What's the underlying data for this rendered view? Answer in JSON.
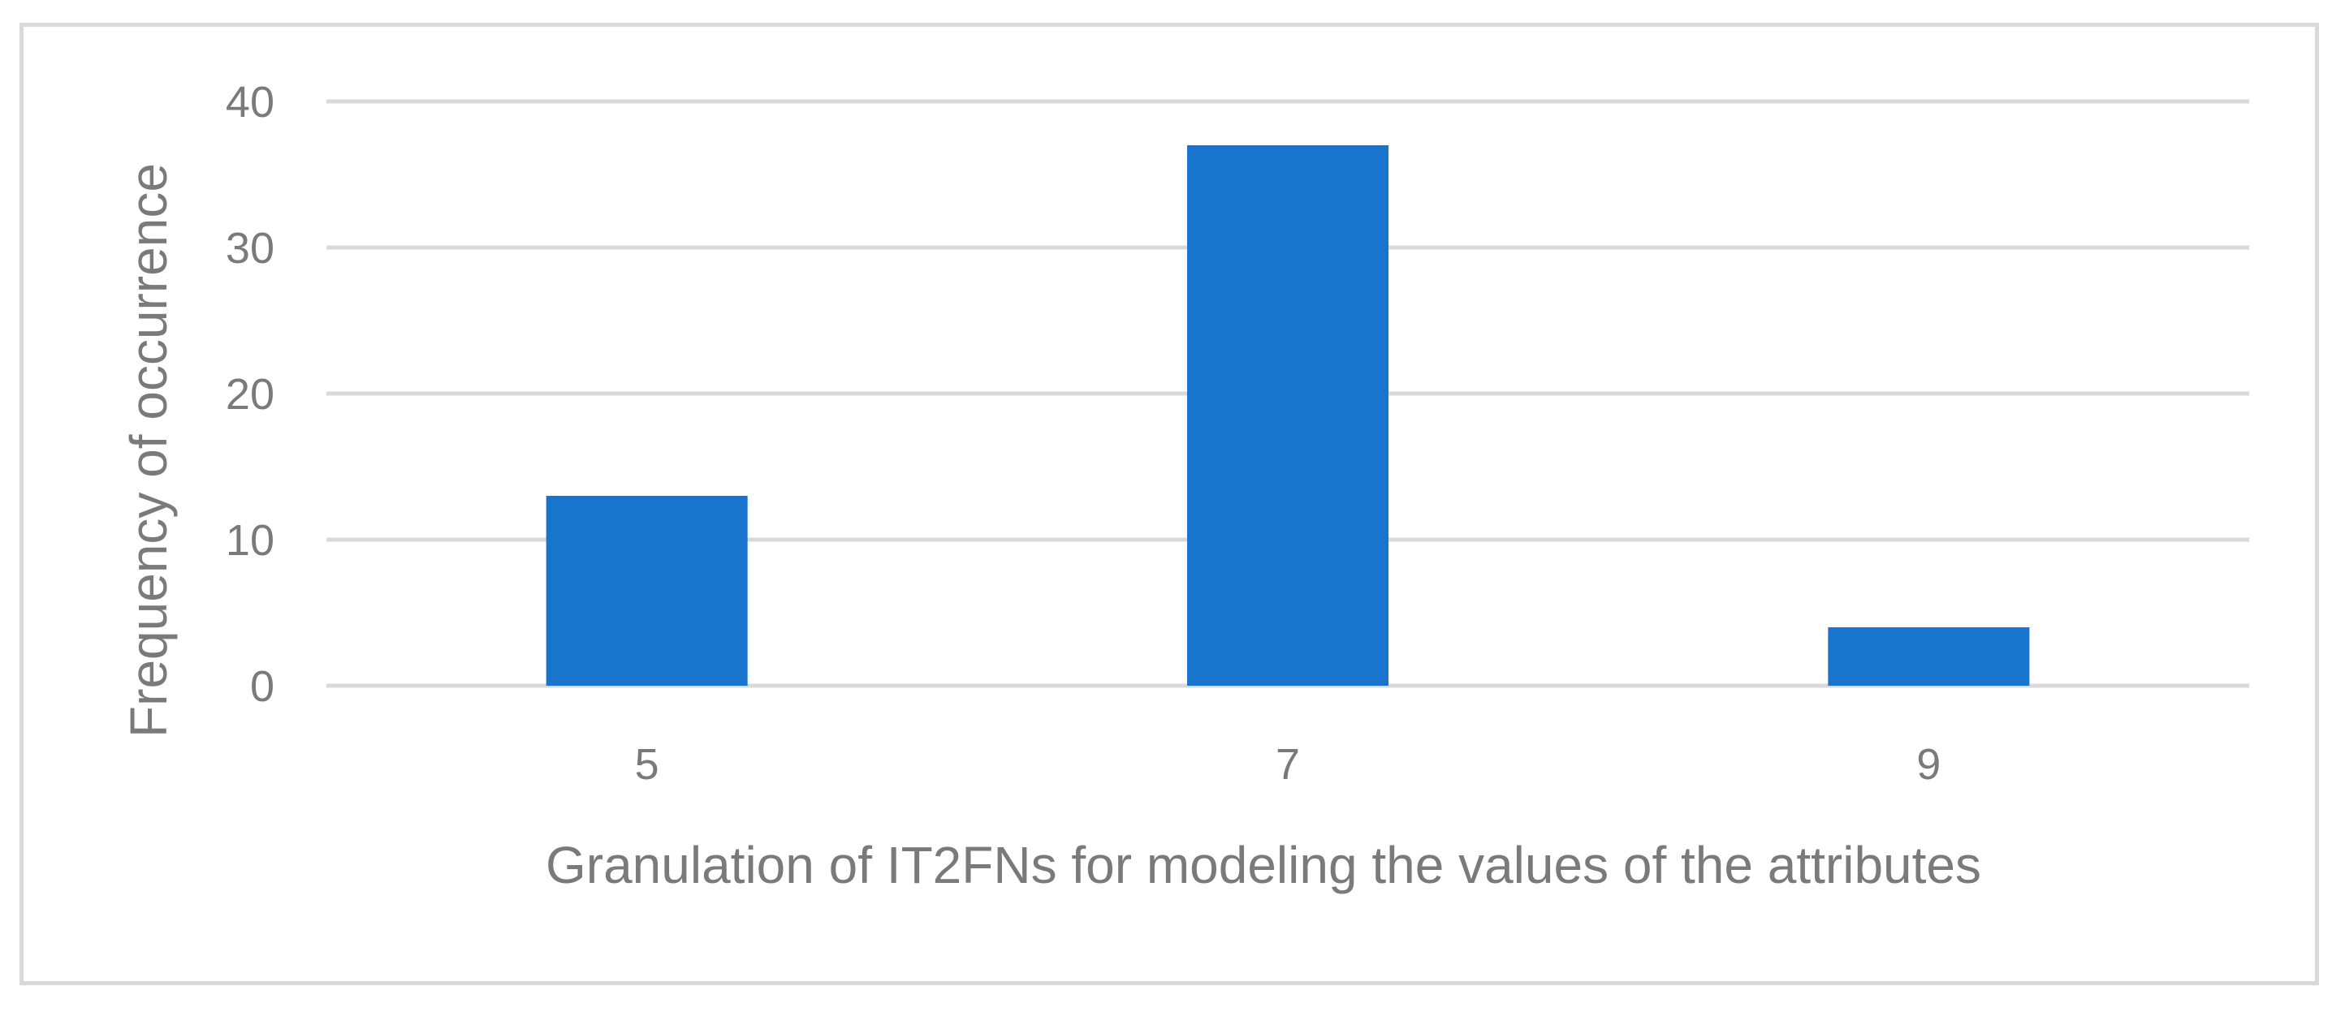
{
  "chart_data": {
    "type": "bar",
    "title": "",
    "xlabel": "Granulation of IT2FNs for modeling the values of the attributes",
    "ylabel": "Frequency of occurrence",
    "categories": [
      "5",
      "7",
      "9"
    ],
    "values": [
      13,
      37,
      4
    ],
    "ylim": [
      0,
      40
    ],
    "yticks": [
      "0",
      "10",
      "20",
      "30",
      "40"
    ],
    "grid": true,
    "legend": "none",
    "bar_color": "#1874CD"
  }
}
